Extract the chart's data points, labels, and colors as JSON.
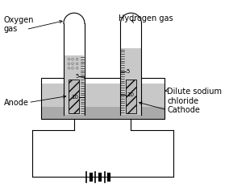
{
  "bg_color": "#ffffff",
  "liquid_color": "#c8c8c8",
  "dark_color": "#aaaaaa",
  "lc": "#000000",
  "labels": {
    "oxygen": "Oxygen\ngas",
    "hydrogen": "Hydrogen gas",
    "dilute": "Dilute sodium\nchloride",
    "anode": "Anode",
    "cathode": "Cathode"
  },
  "font_size": 7
}
